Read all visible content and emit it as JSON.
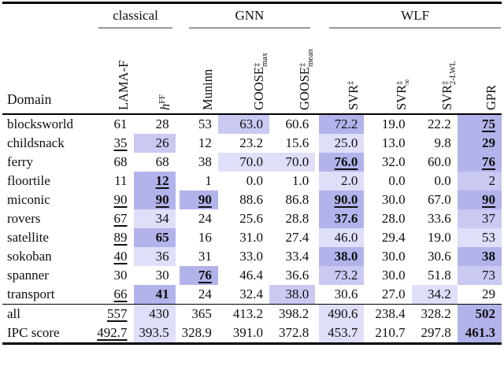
{
  "table": {
    "domain_header": "Domain",
    "groups": [
      {
        "label": "classical",
        "span": 2
      },
      {
        "label": "GNN",
        "span": 3
      },
      {
        "label": "WLF",
        "span": 4
      }
    ],
    "columns": [
      {
        "base": "LAMA-F"
      },
      {
        "base": "h",
        "italic": true,
        "sup": "FF"
      },
      {
        "base": "Muninn"
      },
      {
        "base": "GOOSE",
        "sup": "‡",
        "sub": "max"
      },
      {
        "base": "GOOSE",
        "sup": "‡",
        "sub": "mean"
      },
      {
        "base": "SVR",
        "sup": "‡"
      },
      {
        "base": "SVR",
        "sup": "‡",
        "sub": "∞"
      },
      {
        "base": "SVR",
        "sup": "‡",
        "sub": "2-LWL"
      },
      {
        "base": "GPR"
      }
    ],
    "tint_colors": {
      "1": "#dfdff9",
      "2": "#c9c9f2",
      "3": "#b3b3ec"
    },
    "rows": [
      {
        "domain": "blocksworld",
        "cells": [
          {
            "v": "61"
          },
          {
            "v": "28"
          },
          {
            "v": "53"
          },
          {
            "v": "63.0",
            "t": 2
          },
          {
            "v": "60.6"
          },
          {
            "v": "72.2",
            "t": 3
          },
          {
            "v": "19.0"
          },
          {
            "v": "22.2"
          },
          {
            "v": "75",
            "b": true,
            "u": true,
            "t": 3
          }
        ]
      },
      {
        "domain": "childsnack",
        "cells": [
          {
            "v": "35",
            "u": true
          },
          {
            "v": "26",
            "t": 2
          },
          {
            "v": "12"
          },
          {
            "v": "23.2"
          },
          {
            "v": "15.6"
          },
          {
            "v": "25.0",
            "t": 1
          },
          {
            "v": "13.0"
          },
          {
            "v": "9.8"
          },
          {
            "v": "29",
            "b": true,
            "t": 3
          }
        ]
      },
      {
        "domain": "ferry",
        "cells": [
          {
            "v": "68"
          },
          {
            "v": "68"
          },
          {
            "v": "38"
          },
          {
            "v": "70.0",
            "t": 1
          },
          {
            "v": "70.0",
            "t": 1
          },
          {
            "v": "76.0",
            "b": true,
            "u": true,
            "t": 3
          },
          {
            "v": "32.0"
          },
          {
            "v": "60.0"
          },
          {
            "v": "76",
            "b": true,
            "u": true,
            "t": 3
          }
        ]
      },
      {
        "domain": "floortile",
        "cells": [
          {
            "v": "11"
          },
          {
            "v": "12",
            "b": true,
            "u": true,
            "t": 3
          },
          {
            "v": "1"
          },
          {
            "v": "0.0"
          },
          {
            "v": "1.0"
          },
          {
            "v": "2.0",
            "t": 1
          },
          {
            "v": "0.0"
          },
          {
            "v": "0.0"
          },
          {
            "v": "2",
            "t": 2
          }
        ]
      },
      {
        "domain": "miconic",
        "cells": [
          {
            "v": "90",
            "u": true
          },
          {
            "v": "90",
            "b": true,
            "u": true,
            "t": 3
          },
          {
            "v": "90",
            "b": true,
            "u": true,
            "t": 3
          },
          {
            "v": "88.6"
          },
          {
            "v": "86.8"
          },
          {
            "v": "90.0",
            "b": true,
            "u": true,
            "t": 3
          },
          {
            "v": "30.0"
          },
          {
            "v": "67.0"
          },
          {
            "v": "90",
            "b": true,
            "u": true,
            "t": 3
          }
        ]
      },
      {
        "domain": "rovers",
        "cells": [
          {
            "v": "67",
            "u": true
          },
          {
            "v": "34",
            "t": 1
          },
          {
            "v": "24"
          },
          {
            "v": "25.6"
          },
          {
            "v": "28.8"
          },
          {
            "v": "37.6",
            "b": true,
            "t": 3
          },
          {
            "v": "28.0"
          },
          {
            "v": "33.6"
          },
          {
            "v": "37",
            "t": 2
          }
        ]
      },
      {
        "domain": "satellite",
        "cells": [
          {
            "v": "89",
            "u": true
          },
          {
            "v": "65",
            "b": true,
            "t": 3
          },
          {
            "v": "16"
          },
          {
            "v": "31.0"
          },
          {
            "v": "27.4"
          },
          {
            "v": "46.0",
            "t": 1
          },
          {
            "v": "29.4"
          },
          {
            "v": "19.0"
          },
          {
            "v": "53",
            "t": 1
          }
        ]
      },
      {
        "domain": "sokoban",
        "cells": [
          {
            "v": "40",
            "u": true
          },
          {
            "v": "36",
            "t": 1
          },
          {
            "v": "31"
          },
          {
            "v": "33.0"
          },
          {
            "v": "33.4"
          },
          {
            "v": "38.0",
            "b": true,
            "t": 3
          },
          {
            "v": "30.0"
          },
          {
            "v": "30.6"
          },
          {
            "v": "38",
            "b": true,
            "t": 3
          }
        ]
      },
      {
        "domain": "spanner",
        "cells": [
          {
            "v": "30"
          },
          {
            "v": "30"
          },
          {
            "v": "76",
            "b": true,
            "u": true,
            "t": 3
          },
          {
            "v": "46.4"
          },
          {
            "v": "36.6"
          },
          {
            "v": "73.2",
            "t": 2
          },
          {
            "v": "30.0"
          },
          {
            "v": "51.8"
          },
          {
            "v": "73",
            "t": 2
          }
        ]
      },
      {
        "domain": "transport",
        "cells": [
          {
            "v": "66",
            "u": true
          },
          {
            "v": "41",
            "b": true,
            "t": 3
          },
          {
            "v": "24"
          },
          {
            "v": "32.4"
          },
          {
            "v": "38.0",
            "t": 2
          },
          {
            "v": "30.6"
          },
          {
            "v": "27.0"
          },
          {
            "v": "34.2",
            "t": 1
          },
          {
            "v": "29"
          }
        ]
      }
    ],
    "summary_rows": [
      {
        "domain": "all",
        "cells": [
          {
            "v": "557",
            "u": true
          },
          {
            "v": "430",
            "t": 1
          },
          {
            "v": "365"
          },
          {
            "v": "413.2"
          },
          {
            "v": "398.2"
          },
          {
            "v": "490.6",
            "t": 1
          },
          {
            "v": "238.4"
          },
          {
            "v": "328.2"
          },
          {
            "v": "502",
            "b": true,
            "t": 3
          }
        ]
      },
      {
        "domain": "IPC score",
        "cells": [
          {
            "v": "492.7",
            "u": true
          },
          {
            "v": "393.5",
            "t": 1
          },
          {
            "v": "328.9"
          },
          {
            "v": "391.0"
          },
          {
            "v": "372.8"
          },
          {
            "v": "453.7",
            "t": 1
          },
          {
            "v": "210.7"
          },
          {
            "v": "297.8"
          },
          {
            "v": "461.3",
            "b": true,
            "t": 3
          }
        ]
      }
    ]
  }
}
